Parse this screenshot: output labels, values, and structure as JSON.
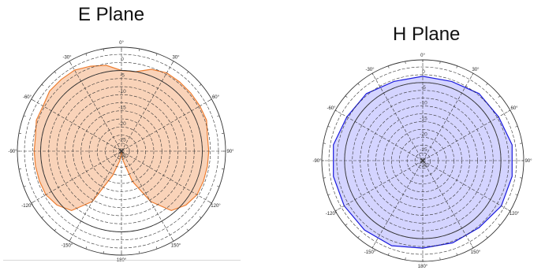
{
  "colors": {
    "e_fill": "#f8cbad",
    "e_stroke": "#ed7d31",
    "h_fill": "#ccccff",
    "h_stroke": "#1a1adc",
    "grid": "#333333"
  },
  "chart_data": [
    {
      "type": "polar",
      "title": "E Plane",
      "angle_unit": "deg",
      "angle_labels": [
        "0°",
        "30°",
        "60°",
        "90°",
        "120°",
        "150°",
        "180°",
        "-150°",
        "-120°",
        "-90°",
        "-60°",
        "-30°"
      ],
      "radial_labels": [
        "0",
        "-5",
        "-10",
        "-15",
        "-20",
        "-25",
        "-30"
      ],
      "radial_range": [
        -30,
        0
      ],
      "series": [
        {
          "angles": [
            -180,
            -170,
            -160,
            -150,
            -140,
            -130,
            -120,
            -110,
            -100,
            -90,
            -80,
            -70,
            -60,
            -50,
            -40,
            -30,
            -20,
            -10,
            0,
            10,
            20,
            30,
            40,
            50,
            60,
            70,
            80,
            90,
            100,
            110,
            120,
            130,
            140,
            150,
            160,
            170,
            180
          ],
          "values_db": [
            -30,
            -27,
            -22,
            -12,
            -6,
            -4,
            -3,
            -3,
            -3,
            -3,
            -3,
            -2,
            -2,
            -1,
            -1,
            -1,
            -2,
            -3,
            -5,
            -5,
            -3,
            -2,
            -2,
            -2,
            -2,
            -2,
            -3,
            -3,
            -3,
            -3,
            -3,
            -4,
            -6,
            -12,
            -20,
            -27,
            -30
          ]
        }
      ]
    },
    {
      "type": "polar",
      "title": "H Plane",
      "angle_unit": "deg",
      "angle_labels": [
        "0°",
        "30°",
        "60°",
        "90°",
        "120°",
        "150°",
        "180°",
        "-150°",
        "-120°",
        "-90°",
        "-60°",
        "-30°"
      ],
      "radial_labels": [
        "0",
        "-5",
        "-10",
        "-15",
        "-20",
        "-25",
        "-30"
      ],
      "radial_range": [
        -30,
        0
      ],
      "series": [
        {
          "angles": [
            -180,
            -160,
            -140,
            -120,
            -100,
            -80,
            -60,
            -40,
            -20,
            0,
            20,
            40,
            60,
            80,
            100,
            120,
            140,
            160,
            180
          ],
          "values_db": [
            -2,
            -1,
            -1,
            -1,
            -1,
            -1,
            -2,
            -2,
            -3,
            -3,
            -3,
            -2,
            -2,
            -1,
            -1,
            -1,
            -2,
            -2,
            -2
          ]
        }
      ]
    }
  ]
}
